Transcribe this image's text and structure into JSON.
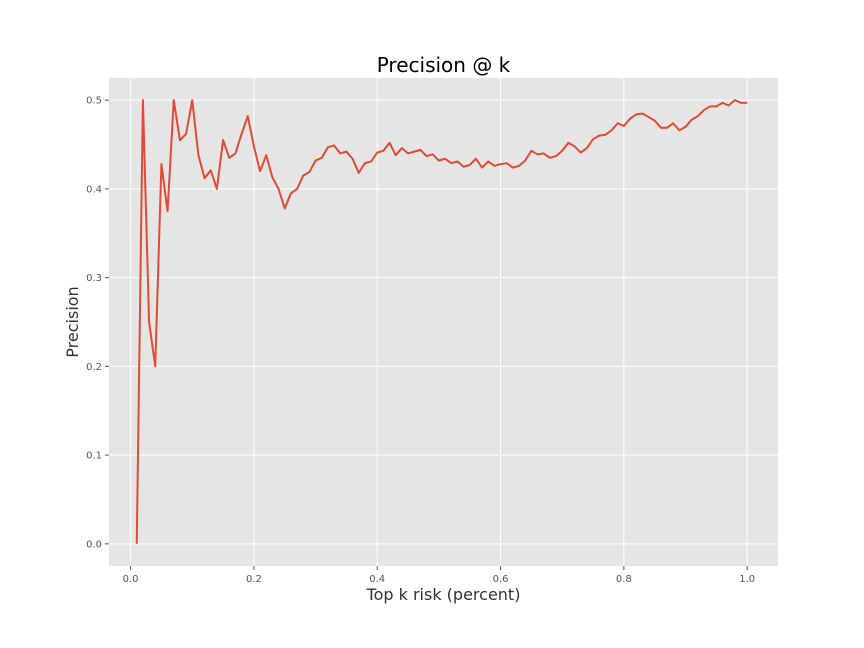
{
  "chart_data": {
    "type": "line",
    "title": "Precision @ k",
    "xlabel": "Top k risk (percent)",
    "ylabel": "Precision",
    "xlim": [
      -0.035,
      1.05
    ],
    "ylim": [
      -0.025,
      0.525
    ],
    "xticks": [
      0.0,
      0.2,
      0.4,
      0.6,
      0.8,
      1.0
    ],
    "xtick_labels": [
      "0.0",
      "0.2",
      "0.4",
      "0.6",
      "0.8",
      "1.0"
    ],
    "yticks": [
      0.0,
      0.1,
      0.2,
      0.3,
      0.4,
      0.5
    ],
    "ytick_labels": [
      "0.0",
      "0.1",
      "0.2",
      "0.3",
      "0.4",
      "0.5"
    ],
    "grid": true,
    "style": "ggplot",
    "background_color": "#e5e5e5",
    "grid_color": "#ffffff",
    "series": [
      {
        "color": "#e24a33",
        "x": [
          0.01,
          0.02,
          0.03,
          0.04,
          0.05,
          0.06,
          0.07,
          0.08,
          0.09,
          0.1,
          0.11,
          0.12,
          0.13,
          0.14,
          0.15,
          0.16,
          0.17,
          0.18,
          0.19,
          0.2,
          0.21,
          0.22,
          0.23,
          0.24,
          0.25,
          0.26,
          0.27,
          0.28,
          0.29,
          0.3,
          0.31,
          0.32,
          0.33,
          0.34,
          0.35,
          0.36,
          0.37,
          0.38,
          0.39,
          0.4,
          0.41,
          0.42,
          0.43,
          0.44,
          0.45,
          0.46,
          0.47,
          0.48,
          0.49,
          0.5,
          0.51,
          0.52,
          0.53,
          0.54,
          0.55,
          0.56,
          0.57,
          0.58,
          0.59,
          0.6,
          0.61,
          0.62,
          0.63,
          0.64,
          0.65,
          0.66,
          0.67,
          0.68,
          0.69,
          0.7,
          0.71,
          0.72,
          0.73,
          0.74,
          0.75,
          0.76,
          0.77,
          0.78,
          0.79,
          0.8,
          0.81,
          0.82,
          0.83,
          0.84,
          0.85,
          0.86,
          0.87,
          0.88,
          0.89,
          0.9,
          0.91,
          0.92,
          0.93,
          0.94,
          0.95,
          0.96,
          0.97,
          0.98,
          0.99,
          1.0
        ],
        "y": [
          0.0,
          0.5,
          0.25,
          0.2,
          0.428,
          0.375,
          0.5,
          0.455,
          0.462,
          0.5,
          0.438,
          0.412,
          0.421,
          0.4,
          0.455,
          0.435,
          0.44,
          0.462,
          0.482,
          0.448,
          0.42,
          0.438,
          0.413,
          0.4,
          0.378,
          0.395,
          0.4,
          0.415,
          0.419,
          0.432,
          0.435,
          0.447,
          0.449,
          0.44,
          0.442,
          0.434,
          0.418,
          0.429,
          0.431,
          0.441,
          0.443,
          0.452,
          0.438,
          0.446,
          0.44,
          0.442,
          0.444,
          0.437,
          0.439,
          0.432,
          0.434,
          0.429,
          0.431,
          0.425,
          0.427,
          0.434,
          0.424,
          0.431,
          0.426,
          0.428,
          0.429,
          0.424,
          0.426,
          0.432,
          0.443,
          0.439,
          0.44,
          0.435,
          0.437,
          0.443,
          0.452,
          0.448,
          0.441,
          0.446,
          0.456,
          0.46,
          0.461,
          0.466,
          0.474,
          0.471,
          0.479,
          0.484,
          0.485,
          0.481,
          0.477,
          0.469,
          0.469,
          0.474,
          0.466,
          0.47,
          0.478,
          0.482,
          0.489,
          0.493,
          0.493,
          0.497,
          0.494,
          0.5,
          0.497,
          0.497
        ]
      }
    ]
  }
}
